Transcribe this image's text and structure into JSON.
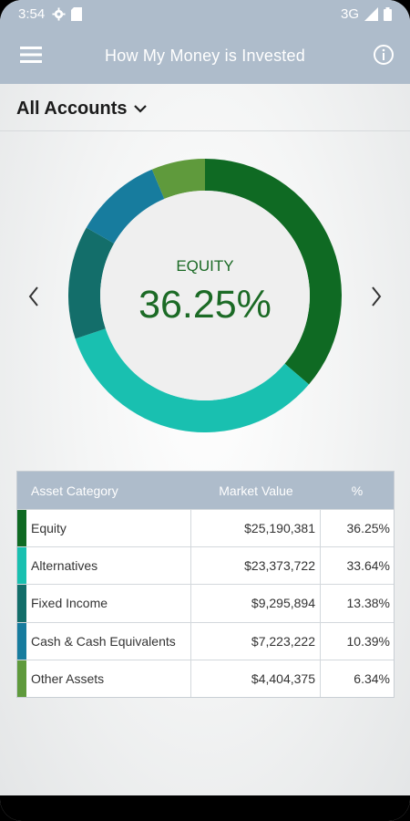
{
  "status_bar": {
    "time": "3:54",
    "network": "3G"
  },
  "app_bar": {
    "title": "How My Money is Invested"
  },
  "account_selector": {
    "label": "All Accounts"
  },
  "donut": {
    "selected_category": "EQUITY",
    "selected_percent": "36.25%",
    "segments": [
      {
        "name": "Equity",
        "percent": 36.25,
        "color": "#0f6a23"
      },
      {
        "name": "Alternatives",
        "percent": 33.64,
        "color": "#19c0b0"
      },
      {
        "name": "Fixed Income",
        "percent": 13.38,
        "color": "#136e6a"
      },
      {
        "name": "Cash & Cash Equivalents",
        "percent": 10.39,
        "color": "#177c9e"
      },
      {
        "name": "Other Assets",
        "percent": 6.34,
        "color": "#5f9a3c"
      }
    ]
  },
  "table": {
    "headers": [
      "Asset Category",
      "Market Value",
      "%"
    ],
    "rows": [
      {
        "category": "Equity",
        "value": "$25,190,381",
        "percent": "36.25%",
        "color": "#0f6a23"
      },
      {
        "category": "Alternatives",
        "value": "$23,373,722",
        "percent": "33.64%",
        "color": "#19c0b0"
      },
      {
        "category": "Fixed Income",
        "value": "$9,295,894",
        "percent": "13.38%",
        "color": "#136e6a"
      },
      {
        "category": "Cash & Cash Equivalents",
        "value": "$7,223,222",
        "percent": "10.39%",
        "color": "#177c9e"
      },
      {
        "category": "Other Assets",
        "value": "$4,404,375",
        "percent": "6.34%",
        "color": "#5f9a3c"
      }
    ]
  }
}
